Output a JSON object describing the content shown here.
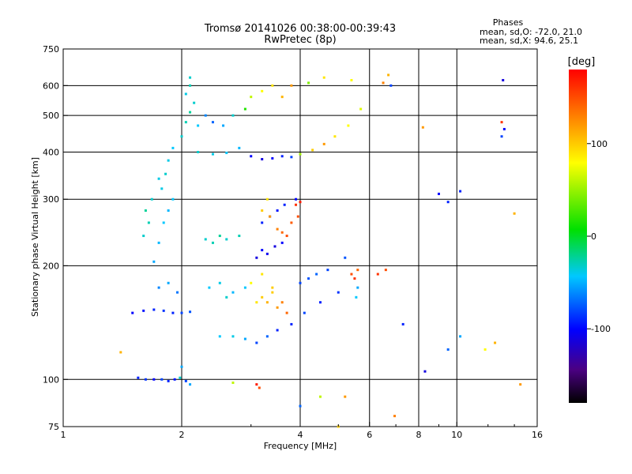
{
  "chart_data": {
    "type": "scatter",
    "title": "Tromsø 20141026 00:38:00-00:39:43",
    "subtitle": "RwPretec (8p)",
    "xlabel": "Frequency [MHz]",
    "ylabel": "Stationary phase Virtual Height [km]",
    "xscale": "log",
    "yscale": "log",
    "xlim": [
      1,
      16
    ],
    "ylim": [
      75,
      750
    ],
    "x_ticks": [
      1,
      2,
      4,
      6,
      8,
      10,
      16
    ],
    "y_ticks": [
      75,
      100,
      200,
      300,
      400,
      500,
      600,
      750
    ],
    "x_grid": [
      2,
      4,
      6,
      8,
      10
    ],
    "y_grid": [
      100,
      200,
      300,
      400,
      500,
      600
    ],
    "phase_info": {
      "title": "Phases",
      "line1": "mean, sd,O: -72.0, 21.0",
      "line2": "mean, sd,X: 94.6, 25.1"
    },
    "colorbar": {
      "label": "[deg]",
      "range": [
        -180,
        180
      ],
      "ticks": [
        100,
        0,
        -100
      ],
      "tick_labels": [
        "100",
        "0",
        "-100"
      ]
    },
    "series": [
      {
        "points": [
          [
            1.55,
            101,
            -100
          ],
          [
            1.62,
            100,
            -95
          ],
          [
            1.7,
            100,
            -110
          ],
          [
            1.78,
            100,
            -90
          ],
          [
            1.85,
            99,
            -100
          ],
          [
            1.92,
            100,
            -105
          ],
          [
            2.05,
            99,
            -90
          ],
          [
            2.1,
            97,
            -60
          ],
          [
            2.0,
            108,
            -60
          ],
          [
            1.98,
            101,
            -40
          ],
          [
            1.5,
            150,
            -110
          ],
          [
            1.6,
            152,
            -105
          ],
          [
            1.7,
            153,
            -100
          ],
          [
            1.8,
            152,
            -95
          ],
          [
            1.9,
            150,
            -100
          ],
          [
            2.0,
            150,
            -90
          ],
          [
            2.1,
            151,
            -85
          ],
          [
            1.75,
            175,
            -70
          ],
          [
            1.85,
            180,
            -60
          ],
          [
            1.95,
            170,
            -75
          ],
          [
            1.7,
            205,
            -60
          ],
          [
            1.75,
            230,
            -55
          ],
          [
            1.8,
            260,
            -50
          ],
          [
            1.85,
            280,
            -55
          ],
          [
            1.9,
            300,
            -50
          ],
          [
            1.78,
            320,
            -45
          ],
          [
            1.82,
            350,
            -40
          ],
          [
            1.85,
            380,
            -45
          ],
          [
            1.9,
            410,
            -50
          ],
          [
            2.0,
            440,
            -40
          ],
          [
            2.05,
            480,
            -35
          ],
          [
            2.1,
            510,
            -30
          ],
          [
            2.15,
            540,
            -40
          ],
          [
            2.05,
            570,
            -45
          ],
          [
            2.1,
            600,
            -35
          ],
          [
            2.1,
            630,
            -40
          ],
          [
            2.2,
            470,
            -50
          ],
          [
            2.3,
            500,
            -70
          ],
          [
            2.4,
            480,
            -80
          ],
          [
            2.55,
            470,
            -60
          ],
          [
            2.7,
            500,
            -40
          ],
          [
            2.9,
            520,
            10
          ],
          [
            3.0,
            560,
            60
          ],
          [
            3.2,
            580,
            80
          ],
          [
            3.4,
            600,
            90
          ],
          [
            3.6,
            560,
            110
          ],
          [
            3.8,
            600,
            120
          ],
          [
            4.2,
            610,
            40
          ],
          [
            4.6,
            630,
            90
          ],
          [
            5.4,
            620,
            80
          ],
          [
            2.2,
            400,
            -40
          ],
          [
            2.4,
            395,
            -45
          ],
          [
            2.6,
            398,
            -50
          ],
          [
            2.8,
            410,
            -55
          ],
          [
            3.0,
            390,
            -110
          ],
          [
            3.2,
            383,
            -120
          ],
          [
            3.4,
            385,
            -110
          ],
          [
            3.6,
            390,
            -100
          ],
          [
            3.8,
            388,
            -90
          ],
          [
            4.0,
            395,
            50
          ],
          [
            4.3,
            405,
            100
          ],
          [
            4.6,
            420,
            120
          ],
          [
            4.9,
            440,
            90
          ],
          [
            5.3,
            470,
            80
          ],
          [
            5.7,
            520,
            70
          ],
          [
            2.3,
            235,
            -40
          ],
          [
            2.4,
            230,
            -35
          ],
          [
            2.5,
            240,
            -30
          ],
          [
            2.6,
            235,
            -40
          ],
          [
            2.8,
            240,
            -35
          ],
          [
            2.35,
            175,
            -50
          ],
          [
            2.5,
            180,
            -45
          ],
          [
            2.7,
            170,
            -55
          ],
          [
            2.9,
            175,
            -50
          ],
          [
            2.6,
            165,
            -40
          ],
          [
            2.5,
            130,
            -50
          ],
          [
            2.7,
            130,
            -45
          ],
          [
            2.9,
            128,
            -60
          ],
          [
            3.1,
            125,
            -90
          ],
          [
            3.3,
            130,
            -80
          ],
          [
            3.5,
            135,
            -100
          ],
          [
            3.8,
            140,
            -100
          ],
          [
            4.1,
            150,
            -90
          ],
          [
            4.5,
            160,
            -100
          ],
          [
            5.0,
            170,
            -95
          ],
          [
            3.1,
            160,
            90
          ],
          [
            3.2,
            165,
            100
          ],
          [
            3.3,
            160,
            110
          ],
          [
            3.4,
            170,
            100
          ],
          [
            3.5,
            155,
            120
          ],
          [
            3.6,
            160,
            130
          ],
          [
            3.7,
            150,
            140
          ],
          [
            3.0,
            180,
            80
          ],
          [
            3.2,
            190,
            90
          ],
          [
            3.4,
            175,
            100
          ],
          [
            3.1,
            210,
            -120
          ],
          [
            3.2,
            220,
            -110
          ],
          [
            3.3,
            215,
            -115
          ],
          [
            3.45,
            225,
            -120
          ],
          [
            3.6,
            230,
            -110
          ],
          [
            3.2,
            260,
            -100
          ],
          [
            3.35,
            270,
            -110
          ],
          [
            3.5,
            280,
            -105
          ],
          [
            3.65,
            290,
            -100
          ],
          [
            3.9,
            300,
            -110
          ],
          [
            3.2,
            280,
            100
          ],
          [
            3.3,
            300,
            90
          ],
          [
            3.35,
            270,
            120
          ],
          [
            3.5,
            250,
            130
          ],
          [
            3.6,
            245,
            140
          ],
          [
            3.7,
            240,
            150
          ],
          [
            3.8,
            260,
            145
          ],
          [
            3.95,
            270,
            150
          ],
          [
            3.9,
            290,
            160
          ],
          [
            4.0,
            295,
            170
          ],
          [
            4.0,
            180,
            -90
          ],
          [
            4.2,
            185,
            -85
          ],
          [
            4.4,
            190,
            -80
          ],
          [
            4.7,
            195,
            -90
          ],
          [
            5.2,
            210,
            -85
          ],
          [
            5.4,
            190,
            150
          ],
          [
            5.5,
            185,
            160
          ],
          [
            5.6,
            195,
            140
          ],
          [
            5.6,
            175,
            -60
          ],
          [
            5.55,
            165,
            -50
          ],
          [
            6.3,
            190,
            160
          ],
          [
            6.6,
            195,
            150
          ],
          [
            6.5,
            610,
            130
          ],
          [
            6.7,
            640,
            110
          ],
          [
            6.8,
            600,
            -90
          ],
          [
            9.0,
            310,
            -110
          ],
          [
            9.5,
            295,
            -100
          ],
          [
            10.2,
            315,
            -100
          ],
          [
            8.2,
            465,
            120
          ],
          [
            13.1,
            620,
            -120
          ],
          [
            13.0,
            480,
            160
          ],
          [
            13.0,
            440,
            -90
          ],
          [
            13.2,
            460,
            -110
          ],
          [
            11.8,
            120,
            80
          ],
          [
            12.5,
            125,
            110
          ],
          [
            8.3,
            105,
            -120
          ],
          [
            9.5,
            120,
            -80
          ],
          [
            10.2,
            130,
            -60
          ],
          [
            5.0,
            75,
            100
          ],
          [
            4.0,
            85,
            -80
          ],
          [
            3.1,
            97,
            170
          ],
          [
            3.15,
            95,
            150
          ],
          [
            2.7,
            98,
            60
          ],
          [
            4.5,
            90,
            60
          ],
          [
            5.2,
            90,
            120
          ],
          [
            1.6,
            240,
            -40
          ],
          [
            1.65,
            260,
            -35
          ],
          [
            1.62,
            280,
            -30
          ],
          [
            1.68,
            300,
            -40
          ],
          [
            1.75,
            340,
            -45
          ],
          [
            1.4,
            118,
            110
          ],
          [
            14.5,
            97,
            120
          ],
          [
            14.0,
            275,
            110
          ],
          [
            6.95,
            80,
            130
          ],
          [
            7.3,
            140,
            -100
          ]
        ]
      }
    ]
  }
}
